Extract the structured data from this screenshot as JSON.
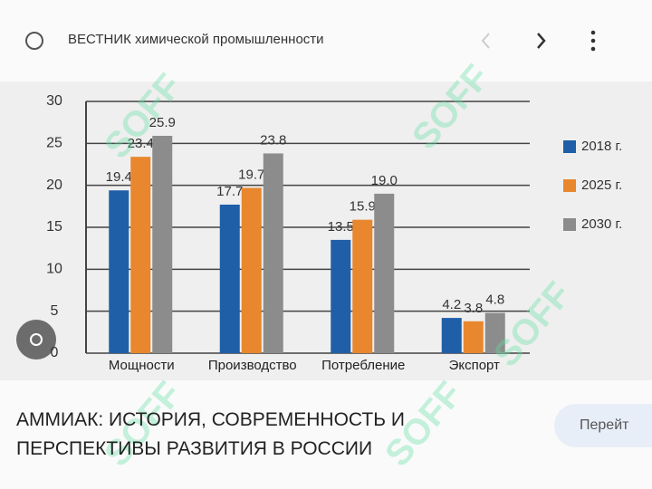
{
  "header": {
    "source": "ВЕСТНИК химической промышленности"
  },
  "chart_data": {
    "type": "bar",
    "categories": [
      "Мощности",
      "Производство",
      "Потребление",
      "Экспорт"
    ],
    "series": [
      {
        "name": "2018 г.",
        "color": "#1f5fa8",
        "values": [
          19.4,
          17.7,
          13.5,
          4.2
        ],
        "value_labels": [
          "19.4",
          "17.7",
          "13.5",
          "4.2"
        ]
      },
      {
        "name": "2025 г.",
        "color": "#e8872e",
        "values": [
          23.4,
          19.7,
          15.9,
          3.8
        ],
        "value_labels": [
          "23.4",
          "19.7",
          "15.9",
          "3.8"
        ]
      },
      {
        "name": "2030 г.",
        "color": "#8c8c8c",
        "values": [
          25.9,
          23.8,
          19.0,
          4.8
        ],
        "value_labels": [
          "25.9",
          "23.8",
          "19.0",
          "4.8"
        ]
      }
    ],
    "ylim": [
      0,
      30
    ],
    "yticks": [
      0,
      5,
      10,
      15,
      20,
      25,
      30
    ],
    "grid": true,
    "legend": "right"
  },
  "caption": "АММИАК: ИСТОРИЯ, СОВРЕМЕННОСТЬ И ПЕРСПЕКТИВЫ РАЗВИТИЯ В РОССИИ",
  "button": "Перейт",
  "watermark": "SOFF"
}
